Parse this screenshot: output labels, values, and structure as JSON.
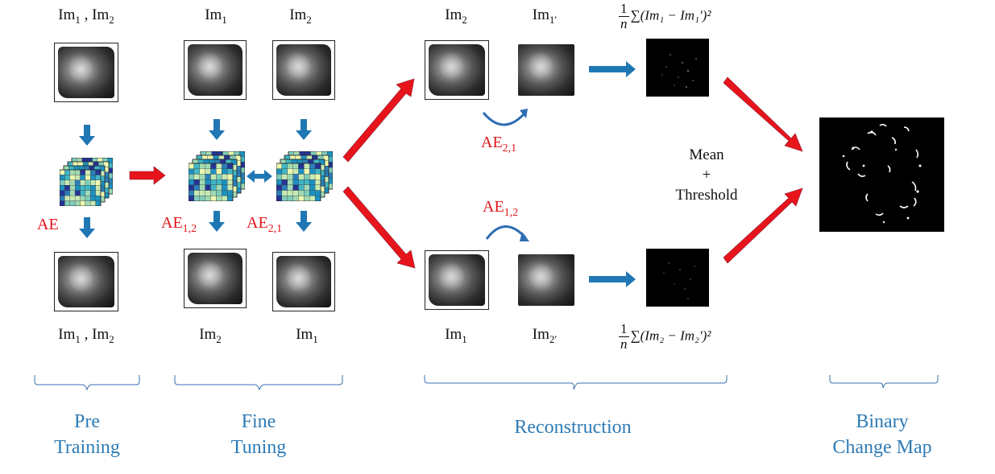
{
  "stages": {
    "pre_training": "Pre\nTraining",
    "fine_tuning": "Fine\nTuning",
    "reconstruction": "Reconstruction",
    "binary_change_map": "Binary\nChange Map"
  },
  "labels": {
    "im1": "Im",
    "im1_sub": "1",
    "im2": "Im",
    "im2_sub": "2",
    "comma": ",",
    "prime": "′"
  },
  "autoencoders": {
    "ae": "AE",
    "ae12": "AE",
    "ae12_sub": "1,2",
    "ae21": "AE",
    "ae21_sub": "2,1"
  },
  "formulas": {
    "top_num": "1",
    "top_den": "n",
    "top_expr": "∑(Im₁ − Im₁′)²",
    "bottom_num": "1",
    "bottom_den": "n",
    "bottom_expr": "∑(Im₂ − Im₂′)²"
  },
  "mean_threshold": {
    "line1": "Mean",
    "line2": "+",
    "line3": "Threshold"
  },
  "colors": {
    "red_arrow": "#e8141b",
    "blue_arrow": "#1f77b4",
    "stage_text": "#2e7bb5",
    "red_text": "#e0141b"
  }
}
